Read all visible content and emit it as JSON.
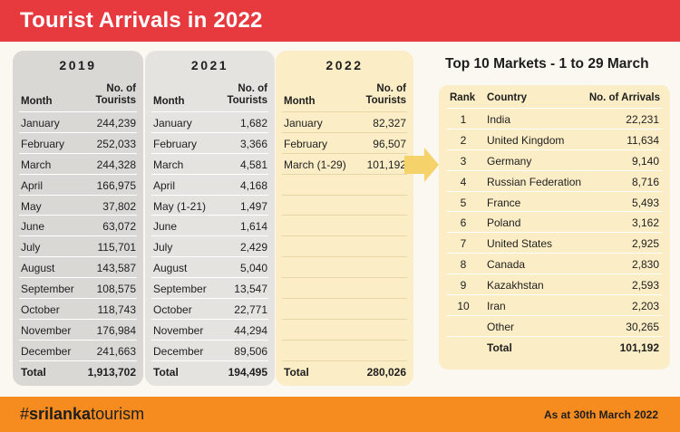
{
  "header": {
    "title": "Tourist Arrivals in 2022"
  },
  "col_month": "Month",
  "col_tourists_1": "No. of",
  "col_tourists_2": "Tourists",
  "tables": [
    {
      "year": "2019",
      "rows": [
        {
          "month": "January",
          "value": "244,239"
        },
        {
          "month": "February",
          "value": "252,033"
        },
        {
          "month": "March",
          "value": "244,328"
        },
        {
          "month": "April",
          "value": "166,975"
        },
        {
          "month": "May",
          "value": "37,802"
        },
        {
          "month": "June",
          "value": "63,072"
        },
        {
          "month": "July",
          "value": "115,701"
        },
        {
          "month": "August",
          "value": "143,587"
        },
        {
          "month": "September",
          "value": "108,575"
        },
        {
          "month": "October",
          "value": "118,743"
        },
        {
          "month": "November",
          "value": "176,984"
        },
        {
          "month": "December",
          "value": "241,663"
        }
      ],
      "total": {
        "label": "Total",
        "value": "1,913,702"
      }
    },
    {
      "year": "2021",
      "rows": [
        {
          "month": "January",
          "value": "1,682"
        },
        {
          "month": "February",
          "value": "3,366"
        },
        {
          "month": "March",
          "value": "4,581"
        },
        {
          "month": "April",
          "value": "4,168"
        },
        {
          "month": "May (1-21)",
          "value": "1,497"
        },
        {
          "month": "June",
          "value": "1,614"
        },
        {
          "month": "July",
          "value": "2,429"
        },
        {
          "month": "August",
          "value": "5,040"
        },
        {
          "month": "September",
          "value": "13,547"
        },
        {
          "month": "October",
          "value": "22,771"
        },
        {
          "month": "November",
          "value": "44,294"
        },
        {
          "month": "December",
          "value": "89,506"
        }
      ],
      "total": {
        "label": "Total",
        "value": "194,495"
      }
    },
    {
      "year": "2022",
      "rows": [
        {
          "month": "January",
          "value": "82,327"
        },
        {
          "month": "February",
          "value": "96,507"
        },
        {
          "month": "March (1-29)",
          "value": "101,192"
        },
        {
          "month": "",
          "value": ""
        },
        {
          "month": "",
          "value": ""
        },
        {
          "month": "",
          "value": ""
        },
        {
          "month": "",
          "value": ""
        },
        {
          "month": "",
          "value": ""
        },
        {
          "month": "",
          "value": ""
        },
        {
          "month": "",
          "value": ""
        },
        {
          "month": "",
          "value": ""
        },
        {
          "month": "",
          "value": ""
        }
      ],
      "total": {
        "label": "Total",
        "value": "280,026"
      }
    }
  ],
  "markets": {
    "title": "Top 10 Markets - 1 to 29 March",
    "col_rank": "Rank",
    "col_country": "Country",
    "col_arrivals": "No. of Arrivals",
    "rows": [
      {
        "rank": "1",
        "country": "India",
        "arrivals": "22,231"
      },
      {
        "rank": "2",
        "country": "United Kingdom",
        "arrivals": "11,634"
      },
      {
        "rank": "3",
        "country": "Germany",
        "arrivals": "9,140"
      },
      {
        "rank": "4",
        "country": "Russian Federation",
        "arrivals": "8,716"
      },
      {
        "rank": "5",
        "country": "France",
        "arrivals": "5,493"
      },
      {
        "rank": "6",
        "country": "Poland",
        "arrivals": "3,162"
      },
      {
        "rank": "7",
        "country": "United States",
        "arrivals": "2,925"
      },
      {
        "rank": "8",
        "country": "Canada",
        "arrivals": "2,830"
      },
      {
        "rank": "9",
        "country": "Kazakhstan",
        "arrivals": "2,593"
      },
      {
        "rank": "10",
        "country": "Iran",
        "arrivals": "2,203"
      },
      {
        "rank": "",
        "country": "Other",
        "arrivals": "30,265"
      }
    ],
    "total": {
      "label": "Total",
      "value": "101,192"
    }
  },
  "footer": {
    "hashtag_prefix": "#",
    "hashtag_bold": "srilanka",
    "hashtag_rest": "tourism",
    "as_at": "As at 30th March 2022"
  },
  "colors": {
    "header": "#e63a3f",
    "footer": "#f68b1f",
    "panel_2019": "#d9d8d5",
    "panel_2021": "#e4e3e0",
    "panel_2022": "#fbedc5",
    "arrow": "#f6d26a"
  },
  "icons": {
    "arrow": "right-arrow-icon"
  }
}
